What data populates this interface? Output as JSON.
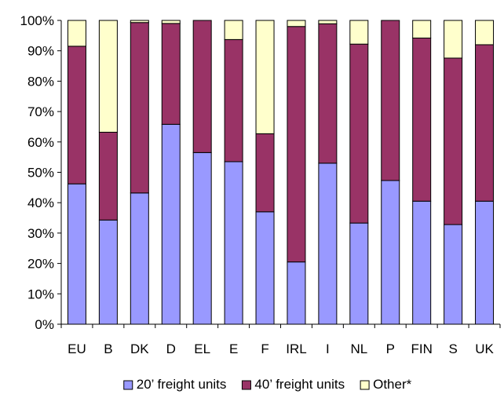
{
  "chart_data": {
    "type": "bar",
    "stacked": true,
    "normalized": true,
    "categories": [
      "EU",
      "B",
      "DK",
      "D",
      "EL",
      "E",
      "F",
      "IRL",
      "I",
      "NL",
      "P",
      "FIN",
      "S",
      "UK"
    ],
    "series": [
      {
        "name": "20’ freight units",
        "color": "#9999ff",
        "values": [
          46.2,
          34.3,
          43.2,
          65.8,
          56.5,
          53.5,
          37.0,
          20.5,
          53.0,
          33.3,
          47.3,
          40.5,
          32.8,
          40.5
        ]
      },
      {
        "name": "40’ freight units",
        "color": "#993366",
        "values": [
          45.3,
          28.9,
          56.1,
          33.2,
          43.5,
          40.2,
          25.7,
          77.5,
          45.9,
          58.9,
          52.7,
          53.7,
          54.8,
          51.5
        ]
      },
      {
        "name": "Other*",
        "color": "#ffffcc",
        "values": [
          8.5,
          36.8,
          0.7,
          1.0,
          0.0,
          6.3,
          37.3,
          2.0,
          1.1,
          7.8,
          0.0,
          5.8,
          12.4,
          8.0
        ]
      }
    ],
    "y_ticks": [
      "0%",
      "10%",
      "20%",
      "30%",
      "40%",
      "50%",
      "60%",
      "70%",
      "80%",
      "90%",
      "100%"
    ],
    "ylim": [
      0,
      100
    ],
    "grid": false,
    "legend_position": "bottom"
  }
}
